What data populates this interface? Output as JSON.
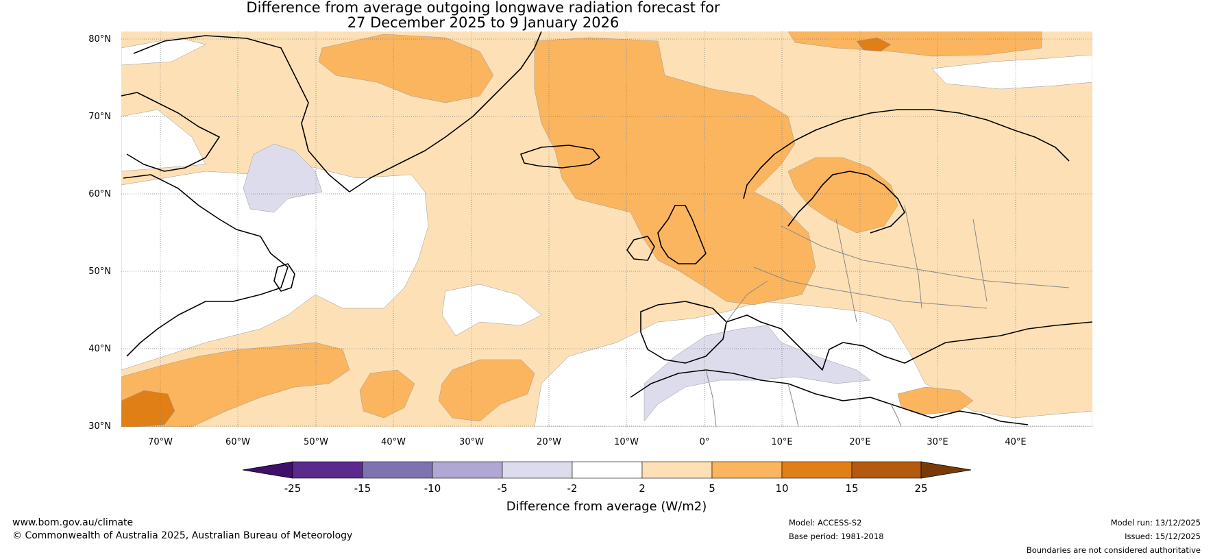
{
  "title": {
    "line1": "Difference from average outgoing longwave radiation forecast for",
    "line2": "27 December 2025 to 9 January 2026"
  },
  "map": {
    "lat_labels": [
      "80°N",
      "70°N",
      "60°N",
      "50°N",
      "40°N",
      "30°N"
    ],
    "lon_labels": [
      "70°W",
      "60°W",
      "50°W",
      "40°W",
      "30°W",
      "20°W",
      "10°W",
      "0°",
      "10°E",
      "20°E",
      "30°E",
      "40°E"
    ],
    "lat_values": [
      80,
      70,
      60,
      50,
      40,
      30
    ],
    "lon_values": [
      -70,
      -60,
      -50,
      -40,
      -30,
      -20,
      -10,
      0,
      10,
      20,
      30,
      40
    ],
    "extent": {
      "lon_min": -75,
      "lon_max": 50,
      "lat_min": 30,
      "lat_max": 81
    }
  },
  "colorbar": {
    "ticks": [
      "-25",
      "-15",
      "-10",
      "-5",
      "-2",
      "2",
      "5",
      "10",
      "15",
      "25"
    ],
    "colors": [
      "#3f0f6b",
      "#5a2a8c",
      "#7f72b0",
      "#b0a8d2",
      "#dcdcec",
      "#ffffff",
      "#fde0b5",
      "#fbb55f",
      "#e07f16",
      "#b25a0d",
      "#7a3a08"
    ],
    "label": "Difference from average (W/m2)"
  },
  "footer": {
    "website": "www.bom.gov.au/climate",
    "copyright": "© Commonwealth of Australia 2025, Australian Bureau of Meteorology",
    "model": "Model: ACCESS-S2",
    "base_period": "Base period: 1981-2018",
    "model_run": "Model run: 13/12/2025",
    "issued": "Issued: 15/12/2025",
    "disclaimer": "Boundaries are not considered authoritative"
  }
}
